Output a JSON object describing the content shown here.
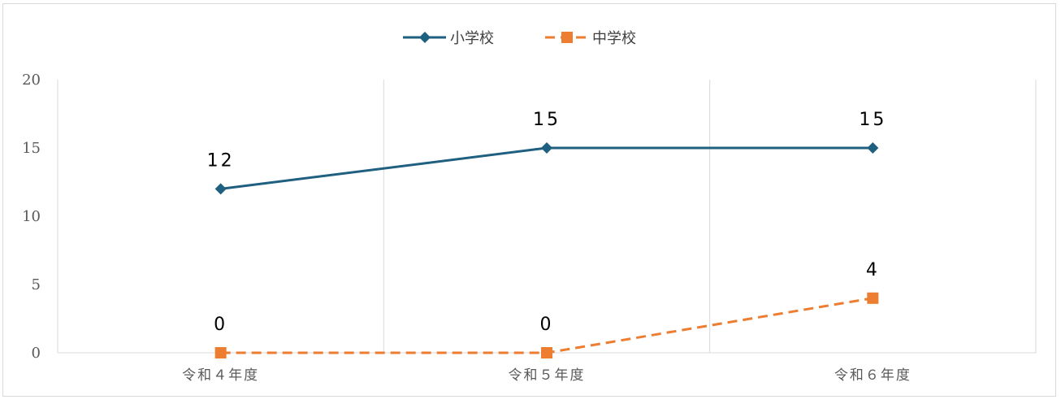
{
  "chart_data": {
    "type": "line",
    "categories": [
      "令和４年度",
      "令和５年度",
      "令和６年度"
    ],
    "series": [
      {
        "name": "小学校",
        "values": [
          12,
          15,
          15
        ],
        "color": "#1f5f7f",
        "marker": "diamond",
        "dash": "solid"
      },
      {
        "name": "中学校",
        "values": [
          0,
          0,
          4
        ],
        "color": "#ed7d31",
        "marker": "square",
        "dash": "dashed"
      }
    ],
    "ylim": [
      0,
      20
    ],
    "yticks": [
      "0",
      "5",
      "10",
      "15",
      "20"
    ],
    "title": "",
    "xlabel": "",
    "ylabel": "",
    "legend": "top-center",
    "grid": "vertical",
    "data_labels": true
  }
}
